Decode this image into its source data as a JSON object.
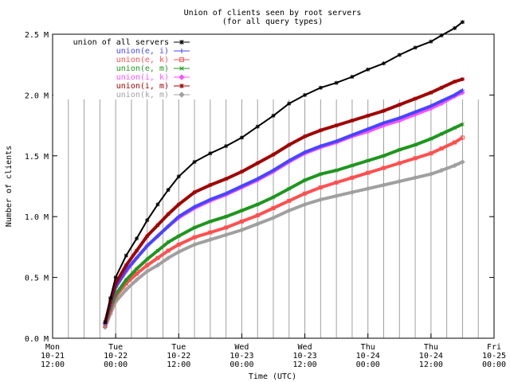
{
  "chart_data": {
    "type": "line",
    "title": "Union of clients seen by root servers",
    "subtitle": "(for all query types)",
    "xlabel": "Time (UTC)",
    "ylabel": "Number of clients",
    "y_unit": "M",
    "ylim": [
      0,
      2.5
    ],
    "y_ticks": [
      "0.0 M",
      "0.5 M",
      "1.0 M",
      "1.5 M",
      "2.0 M",
      "2.5 M"
    ],
    "x_unit": "hours since Mon 10-21 12:00",
    "xlim": [
      0,
      84
    ],
    "x_ticks": [
      {
        "hour": 0,
        "label": [
          "Mon",
          "10-21",
          "12:00"
        ]
      },
      {
        "hour": 12,
        "label": [
          "Tue",
          "10-22",
          "00:00"
        ]
      },
      {
        "hour": 24,
        "label": [
          "Tue",
          "10-22",
          "12:00"
        ]
      },
      {
        "hour": 36,
        "label": [
          "Wed",
          "10-23",
          "00:00"
        ]
      },
      {
        "hour": 48,
        "label": [
          "Wed",
          "10-23",
          "12:00"
        ]
      },
      {
        "hour": 60,
        "label": [
          "Thu",
          "10-24",
          "00:00"
        ]
      },
      {
        "hour": 72,
        "label": [
          "Thu",
          "10-24",
          "12:00"
        ]
      },
      {
        "hour": 84,
        "label": [
          "Fri",
          "10-25",
          "00:00"
        ]
      }
    ],
    "grid": true,
    "grid_step_hours": 3,
    "legend_position": "top-left",
    "series": [
      {
        "name": "union of all servers",
        "color": "#000000",
        "marker": "plus-x",
        "x": [
          10,
          11,
          12,
          14,
          16,
          18,
          20,
          22,
          24,
          27,
          30,
          33,
          36,
          39,
          42,
          45,
          48,
          51,
          54,
          57,
          60,
          63,
          66,
          69,
          72,
          74,
          76.5,
          78
        ],
        "y": [
          0.13,
          0.33,
          0.5,
          0.68,
          0.82,
          0.97,
          1.1,
          1.22,
          1.33,
          1.45,
          1.52,
          1.58,
          1.65,
          1.74,
          1.83,
          1.93,
          2.0,
          2.06,
          2.1,
          2.15,
          2.21,
          2.26,
          2.33,
          2.39,
          2.44,
          2.49,
          2.55,
          2.6
        ]
      },
      {
        "name": "union(e, i)",
        "color": "#4646ff",
        "marker": "plus",
        "x": [
          10,
          11,
          12,
          14,
          16,
          18,
          20,
          22,
          24,
          27,
          30,
          33,
          36,
          39,
          42,
          45,
          48,
          51,
          54,
          57,
          60,
          63,
          66,
          69,
          72,
          74,
          76.5,
          78
        ],
        "y": [
          0.12,
          0.28,
          0.42,
          0.56,
          0.66,
          0.76,
          0.84,
          0.92,
          1.0,
          1.08,
          1.14,
          1.19,
          1.25,
          1.31,
          1.38,
          1.46,
          1.53,
          1.58,
          1.62,
          1.67,
          1.72,
          1.77,
          1.81,
          1.86,
          1.91,
          1.95,
          2.0,
          2.04
        ]
      },
      {
        "name": "union(e, k)",
        "color": "#ff5050",
        "marker": "square",
        "x": [
          10,
          11,
          12,
          14,
          16,
          18,
          20,
          22,
          24,
          27,
          30,
          33,
          36,
          39,
          42,
          45,
          48,
          51,
          54,
          57,
          60,
          63,
          66,
          69,
          72,
          74,
          76.5,
          78
        ],
        "y": [
          0.1,
          0.23,
          0.34,
          0.45,
          0.53,
          0.6,
          0.66,
          0.72,
          0.77,
          0.83,
          0.87,
          0.91,
          0.96,
          1.01,
          1.07,
          1.13,
          1.19,
          1.24,
          1.28,
          1.32,
          1.36,
          1.4,
          1.44,
          1.48,
          1.52,
          1.56,
          1.61,
          1.65
        ]
      },
      {
        "name": "union(e, m)",
        "color": "#1e961e",
        "marker": "x",
        "x": [
          10,
          11,
          12,
          14,
          16,
          18,
          20,
          22,
          24,
          27,
          30,
          33,
          36,
          39,
          42,
          45,
          48,
          51,
          54,
          57,
          60,
          63,
          66,
          69,
          72,
          74,
          76.5,
          78
        ],
        "y": [
          0.11,
          0.25,
          0.36,
          0.48,
          0.57,
          0.65,
          0.72,
          0.79,
          0.84,
          0.91,
          0.96,
          1.0,
          1.05,
          1.1,
          1.16,
          1.23,
          1.3,
          1.35,
          1.38,
          1.42,
          1.46,
          1.5,
          1.55,
          1.59,
          1.64,
          1.68,
          1.73,
          1.76
        ]
      },
      {
        "name": "union(i, k)",
        "color": "#ff50ff",
        "marker": "diamond",
        "x": [
          10,
          11,
          12,
          14,
          16,
          18,
          20,
          22,
          24,
          27,
          30,
          33,
          36,
          39,
          42,
          45,
          48,
          51,
          54,
          57,
          60,
          63,
          66,
          69,
          72,
          74,
          76.5,
          78
        ],
        "y": [
          0.12,
          0.28,
          0.42,
          0.55,
          0.66,
          0.76,
          0.84,
          0.92,
          0.99,
          1.07,
          1.13,
          1.18,
          1.24,
          1.3,
          1.37,
          1.45,
          1.52,
          1.57,
          1.61,
          1.66,
          1.7,
          1.75,
          1.79,
          1.84,
          1.89,
          1.93,
          1.99,
          2.02
        ]
      },
      {
        "name": "union(i, m)",
        "color": "#a00000",
        "marker": "star",
        "x": [
          10,
          11,
          12,
          14,
          16,
          18,
          20,
          22,
          24,
          27,
          30,
          33,
          36,
          39,
          42,
          45,
          48,
          51,
          54,
          57,
          60,
          63,
          66,
          69,
          72,
          74,
          76.5,
          78
        ],
        "y": [
          0.13,
          0.3,
          0.45,
          0.6,
          0.72,
          0.84,
          0.93,
          1.02,
          1.1,
          1.2,
          1.26,
          1.31,
          1.37,
          1.44,
          1.51,
          1.59,
          1.66,
          1.71,
          1.75,
          1.79,
          1.83,
          1.87,
          1.92,
          1.97,
          2.02,
          2.06,
          2.11,
          2.13
        ]
      },
      {
        "name": "union(k, m)",
        "color": "#a0a0a0",
        "marker": "diamond",
        "x": [
          10,
          11,
          12,
          14,
          16,
          18,
          20,
          22,
          24,
          27,
          30,
          33,
          36,
          39,
          42,
          45,
          48,
          51,
          54,
          57,
          60,
          63,
          66,
          69,
          72,
          74,
          76.5,
          78
        ],
        "y": [
          0.09,
          0.2,
          0.3,
          0.4,
          0.48,
          0.55,
          0.6,
          0.66,
          0.71,
          0.77,
          0.81,
          0.85,
          0.89,
          0.94,
          0.99,
          1.05,
          1.1,
          1.14,
          1.17,
          1.2,
          1.23,
          1.26,
          1.29,
          1.32,
          1.35,
          1.38,
          1.42,
          1.45
        ]
      }
    ]
  }
}
